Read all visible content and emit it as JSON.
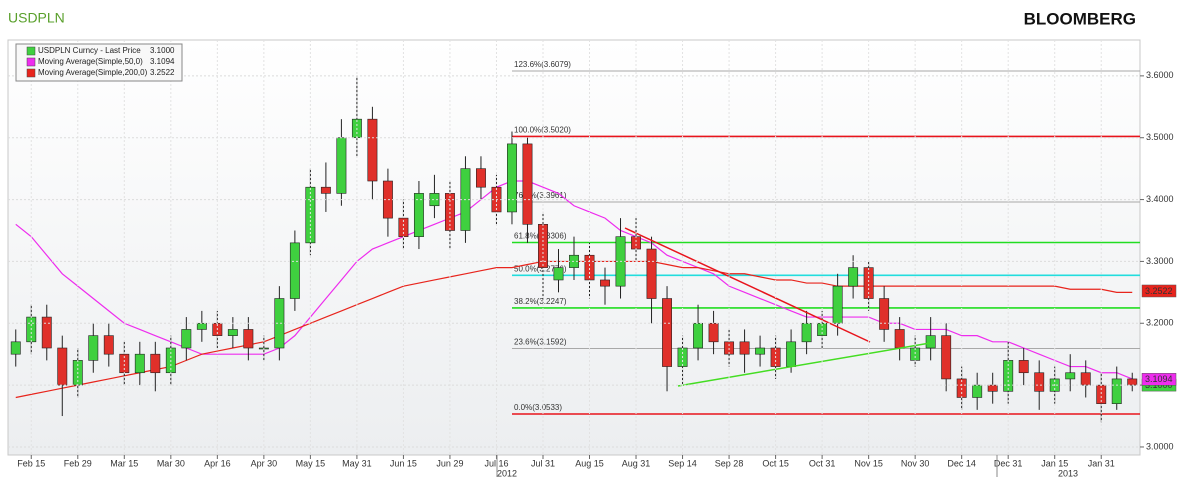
{
  "chart_data": {
    "type": "candlestick",
    "title": "USDPLN",
    "brand": "BLOOMBERG",
    "categories": [
      null,
      "Feb 15",
      null,
      null,
      "Feb 29",
      null,
      null,
      "Mar 15",
      null,
      null,
      "Mar 30",
      null,
      null,
      "Apr 16",
      null,
      null,
      "Apr 30",
      null,
      null,
      "May 15",
      null,
      null,
      "May 31",
      null,
      null,
      "Jun 15",
      null,
      null,
      "Jun 29",
      null,
      null,
      "Jul 16",
      null,
      null,
      "Jul 31",
      null,
      null,
      "Aug 15",
      null,
      null,
      "Aug 31",
      null,
      null,
      "Sep 14",
      null,
      null,
      "Sep 28",
      null,
      null,
      "Oct 15",
      null,
      null,
      "Oct 31",
      null,
      null,
      "Nov 15",
      null,
      null,
      "Nov 30",
      null,
      null,
      "Dec 14",
      null,
      null,
      "Dec 31",
      null,
      null,
      "Jan 15",
      null,
      null,
      "Jan 31",
      null,
      null
    ],
    "year_labels": [
      "2012",
      "2013"
    ],
    "series": [
      {
        "name": "USDPLN Curncy - Last Price",
        "color": "#3fd03f",
        "down_color": "#e0302a",
        "last": {
          "value": 3.1,
          "label": "3.1000"
        },
        "open": [
          3.15,
          3.17,
          3.21,
          3.16,
          3.1,
          3.14,
          3.18,
          3.15,
          3.12,
          3.15,
          3.12,
          3.16,
          3.19,
          3.2,
          3.18,
          3.19,
          3.16,
          3.16,
          3.24,
          3.33,
          3.42,
          3.41,
          3.5,
          3.53,
          3.43,
          3.37,
          3.34,
          3.39,
          3.41,
          3.35,
          3.45,
          3.42,
          3.38,
          3.49,
          3.36,
          3.27,
          3.29,
          3.31,
          3.27,
          3.26,
          3.34,
          3.32,
          3.24,
          3.13,
          3.16,
          3.2,
          3.17,
          3.17,
          3.15,
          3.16,
          3.13,
          3.17,
          3.18,
          3.2,
          3.26,
          3.29,
          3.24,
          3.19,
          3.14,
          3.16,
          3.18,
          3.11,
          3.08,
          3.1,
          3.09,
          3.14,
          3.12,
          3.09,
          3.11,
          3.12,
          3.1,
          3.07,
          3.11
        ],
        "high": [
          3.19,
          3.23,
          3.23,
          3.18,
          3.16,
          3.2,
          3.2,
          3.17,
          3.17,
          3.17,
          3.18,
          3.21,
          3.22,
          3.22,
          3.21,
          3.21,
          3.18,
          3.26,
          3.35,
          3.45,
          3.46,
          3.53,
          3.6,
          3.55,
          3.45,
          3.4,
          3.43,
          3.44,
          3.43,
          3.47,
          3.47,
          3.44,
          3.51,
          3.5,
          3.38,
          3.32,
          3.34,
          3.33,
          3.29,
          3.37,
          3.37,
          3.34,
          3.26,
          3.18,
          3.23,
          3.22,
          3.19,
          3.19,
          3.18,
          3.18,
          3.19,
          3.22,
          3.22,
          3.28,
          3.31,
          3.3,
          3.26,
          3.21,
          3.18,
          3.21,
          3.2,
          3.13,
          3.12,
          3.12,
          3.17,
          3.16,
          3.14,
          3.13,
          3.15,
          3.14,
          3.12,
          3.13,
          3.12
        ],
        "low": [
          3.13,
          3.15,
          3.14,
          3.05,
          3.08,
          3.12,
          3.13,
          3.1,
          3.1,
          3.09,
          3.1,
          3.14,
          3.17,
          3.16,
          3.16,
          3.14,
          3.14,
          3.14,
          3.22,
          3.31,
          3.38,
          3.39,
          3.47,
          3.4,
          3.34,
          3.32,
          3.32,
          3.37,
          3.32,
          3.33,
          3.4,
          3.36,
          3.36,
          3.33,
          3.24,
          3.25,
          3.27,
          3.24,
          3.23,
          3.24,
          3.3,
          3.2,
          3.09,
          3.1,
          3.14,
          3.15,
          3.13,
          3.12,
          3.13,
          3.11,
          3.12,
          3.15,
          3.16,
          3.18,
          3.24,
          3.22,
          3.17,
          3.14,
          3.13,
          3.14,
          3.09,
          3.06,
          3.06,
          3.07,
          3.07,
          3.1,
          3.06,
          3.07,
          3.09,
          3.08,
          3.04,
          3.06,
          3.09
        ],
        "close": [
          3.17,
          3.21,
          3.16,
          3.1,
          3.14,
          3.18,
          3.15,
          3.12,
          3.15,
          3.12,
          3.16,
          3.19,
          3.2,
          3.18,
          3.19,
          3.16,
          3.16,
          3.24,
          3.33,
          3.42,
          3.41,
          3.5,
          3.53,
          3.43,
          3.37,
          3.34,
          3.41,
          3.41,
          3.35,
          3.45,
          3.42,
          3.38,
          3.49,
          3.36,
          3.29,
          3.29,
          3.31,
          3.27,
          3.26,
          3.34,
          3.32,
          3.24,
          3.13,
          3.16,
          3.2,
          3.17,
          3.15,
          3.15,
          3.16,
          3.13,
          3.17,
          3.2,
          3.2,
          3.26,
          3.29,
          3.24,
          3.19,
          3.16,
          3.16,
          3.18,
          3.11,
          3.08,
          3.1,
          3.09,
          3.14,
          3.12,
          3.09,
          3.11,
          3.12,
          3.1,
          3.07,
          3.11,
          3.1
        ]
      },
      {
        "name": "Moving Average(Simple,50,0)",
        "color": "#ee2cee",
        "last": {
          "value": 3.1094,
          "label": "3.1094"
        },
        "values": [
          3.36,
          3.34,
          3.31,
          3.28,
          3.26,
          3.24,
          3.22,
          3.2,
          3.19,
          3.18,
          3.17,
          3.16,
          3.15,
          3.15,
          3.15,
          3.15,
          3.15,
          3.16,
          3.18,
          3.21,
          3.24,
          3.27,
          3.3,
          3.32,
          3.33,
          3.34,
          3.35,
          3.36,
          3.37,
          3.38,
          3.4,
          3.42,
          3.43,
          3.43,
          3.42,
          3.41,
          3.39,
          3.38,
          3.37,
          3.35,
          3.34,
          3.33,
          3.31,
          3.3,
          3.29,
          3.28,
          3.26,
          3.25,
          3.24,
          3.23,
          3.22,
          3.21,
          3.21,
          3.21,
          3.21,
          3.21,
          3.2,
          3.2,
          3.19,
          3.19,
          3.19,
          3.18,
          3.18,
          3.17,
          3.17,
          3.16,
          3.15,
          3.14,
          3.13,
          3.13,
          3.12,
          3.12,
          3.11
        ]
      },
      {
        "name": "Moving Average(Simple,200,0)",
        "color": "#e8241c",
        "last": {
          "value": 3.2522,
          "label": "3.2522"
        },
        "values": [
          3.08,
          3.085,
          3.09,
          3.095,
          3.1,
          3.105,
          3.11,
          3.115,
          3.12,
          3.125,
          3.13,
          3.14,
          3.15,
          3.155,
          3.16,
          3.165,
          3.17,
          3.18,
          3.19,
          3.2,
          3.21,
          3.22,
          3.23,
          3.24,
          3.25,
          3.26,
          3.265,
          3.27,
          3.275,
          3.28,
          3.285,
          3.29,
          3.29,
          3.295,
          3.3,
          3.3,
          3.3,
          3.3,
          3.3,
          3.3,
          3.3,
          3.3,
          3.295,
          3.29,
          3.29,
          3.285,
          3.28,
          3.28,
          3.275,
          3.27,
          3.27,
          3.265,
          3.265,
          3.26,
          3.26,
          3.26,
          3.26,
          3.26,
          3.26,
          3.26,
          3.26,
          3.26,
          3.26,
          3.26,
          3.26,
          3.26,
          3.26,
          3.26,
          3.255,
          3.255,
          3.255,
          3.25,
          3.25
        ]
      }
    ],
    "fib_levels": [
      {
        "label": "123.6%(3.6079)",
        "value": 3.6079,
        "color": "#a8a8a8"
      },
      {
        "label": "100.0%(3.5020)",
        "value": 3.502,
        "color": "#e8141c"
      },
      {
        "label": "76.4%(3.3961)",
        "value": 3.3961,
        "color": "#a8a8a8"
      },
      {
        "label": "61.8%(3.3306)",
        "value": 3.3306,
        "color": "#22dd22"
      },
      {
        "label": "50.0%(3.2776)",
        "value": 3.2776,
        "color": "#22dddd"
      },
      {
        "label": "38.2%(3.2247)",
        "value": 3.2247,
        "color": "#22dd22"
      },
      {
        "label": "23.6%(3.1592)",
        "value": 3.1592,
        "color": "#a8a8a8"
      },
      {
        "label": "0.0%(3.0533)",
        "value": 3.0533,
        "color": "#e8141c"
      }
    ],
    "ylim": [
      2.987,
      3.658
    ],
    "yticks": [
      {
        "value": 3.0,
        "label": "3.0000"
      },
      {
        "value": 3.1,
        "label": "3.1000"
      },
      {
        "value": 3.2,
        "label": "3.2000"
      },
      {
        "value": 3.3,
        "label": "3.3000"
      },
      {
        "value": 3.4,
        "label": "3.4000"
      },
      {
        "value": 3.5,
        "label": "3.5000"
      },
      {
        "value": 3.6,
        "label": "3.6000"
      }
    ],
    "grid": true,
    "legend": "upper left"
  }
}
